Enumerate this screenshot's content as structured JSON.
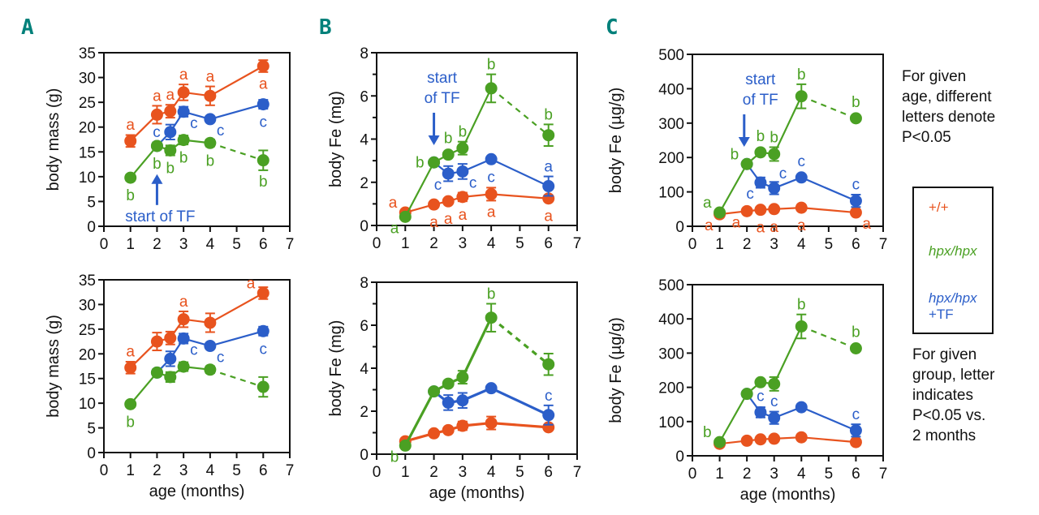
{
  "colors": {
    "wt": "#e8531e",
    "hpx": "#4aa023",
    "tf": "#2b5ec9",
    "panel_label": "#00807a"
  },
  "notes": {
    "top": [
      "For given",
      "age, different",
      "letters denote",
      "P<0.05"
    ],
    "bottom": [
      "For given",
      "group, letter",
      "indicates",
      "P<0.05 vs.",
      "2 months"
    ]
  },
  "legend": {
    "wt": "+/+",
    "hpx": "hpx/hpx",
    "tf_line1": "hpx/hpx",
    "tf_line2": "+TF"
  },
  "chart_data": [
    {
      "id": "A-top",
      "panel": "A",
      "type": "line",
      "ylabel": "body mass (g)",
      "xlabel": "",
      "ylim": [
        0,
        35
      ],
      "yticks": [
        0,
        5,
        10,
        15,
        20,
        25,
        30,
        35
      ],
      "xlim": [
        0,
        7
      ],
      "xticks": [
        0,
        1,
        2,
        3,
        4,
        5,
        6,
        7
      ],
      "annotation": {
        "text": [
          "start of TF"
        ],
        "arrow": "up",
        "x": 2
      },
      "series": [
        {
          "name": "+/+",
          "color_key": "wt",
          "x": [
            1,
            2,
            2.5,
            3,
            4,
            6
          ],
          "y": [
            17.2,
            22.5,
            23.2,
            27,
            26.3,
            32.3
          ],
          "err": [
            1.2,
            1.8,
            1.3,
            1.6,
            1.9,
            1.2
          ],
          "dashed_last": false,
          "letters": [
            {
              "x": 1,
              "t": "a",
              "pos": "above"
            },
            {
              "x": 2,
              "t": "a",
              "pos": "above"
            },
            {
              "x": 2.5,
              "t": "a",
              "pos": "above"
            },
            {
              "x": 3,
              "t": "a",
              "pos": "above"
            },
            {
              "x": 4,
              "t": "a",
              "pos": "above"
            },
            {
              "x": 6,
              "t": "a",
              "pos": "below"
            }
          ]
        },
        {
          "name": "hpx/hpx +TF",
          "color_key": "tf",
          "x": [
            2,
            2.5,
            3,
            4,
            6
          ],
          "y": [
            16.2,
            19,
            23.1,
            21.6,
            24.6
          ],
          "err": [
            0,
            1.5,
            1,
            0.6,
            0.9
          ],
          "dashed_last": false,
          "letters": [
            {
              "x": 2.5,
              "t": "c",
              "pos": "left"
            },
            {
              "x": 3,
              "t": "c",
              "pos": "belowright"
            },
            {
              "x": 4,
              "t": "c",
              "pos": "belowright"
            },
            {
              "x": 6,
              "t": "c",
              "pos": "below"
            }
          ]
        },
        {
          "name": "hpx/hpx",
          "color_key": "hpx",
          "x": [
            1,
            2,
            2.5,
            3,
            4,
            6
          ],
          "y": [
            9.8,
            16.2,
            15.3,
            17.4,
            16.8,
            13.3
          ],
          "err": [
            0.6,
            0.7,
            1,
            0.9,
            0.7,
            2
          ],
          "dashed_last": true,
          "letters": [
            {
              "x": 1,
              "t": "b",
              "pos": "below"
            },
            {
              "x": 2,
              "t": "b",
              "pos": "below"
            },
            {
              "x": 2.5,
              "t": "b",
              "pos": "below"
            },
            {
              "x": 3,
              "t": "b",
              "pos": "below"
            },
            {
              "x": 4,
              "t": "b",
              "pos": "below"
            },
            {
              "x": 6,
              "t": "b",
              "pos": "below"
            }
          ]
        }
      ]
    },
    {
      "id": "A-bottom",
      "panel": "A",
      "type": "line",
      "ylabel": "body mass (g)",
      "xlabel": "age (months)",
      "ylim": [
        0,
        35
      ],
      "yticks": [
        0,
        5,
        10,
        15,
        20,
        25,
        30,
        35
      ],
      "xlim": [
        0,
        7
      ],
      "xticks": [
        0,
        1,
        2,
        3,
        4,
        5,
        6,
        7
      ],
      "series": [
        {
          "name": "+/+",
          "color_key": "wt",
          "x": [
            1,
            2,
            2.5,
            3,
            4,
            6
          ],
          "y": [
            17.2,
            22.5,
            23.2,
            27,
            26.3,
            32.3
          ],
          "err": [
            1.2,
            1.8,
            1.3,
            1.6,
            1.9,
            1.2
          ],
          "dashed_last": false,
          "letters": [
            {
              "x": 1,
              "t": "a",
              "pos": "above"
            },
            {
              "x": 3,
              "t": "a",
              "pos": "above"
            },
            {
              "x": 6,
              "t": "a",
              "pos": "aboveleft"
            }
          ]
        },
        {
          "name": "hpx/hpx +TF",
          "color_key": "tf",
          "x": [
            2,
            2.5,
            3,
            4,
            6
          ],
          "y": [
            16.2,
            19,
            23.1,
            21.6,
            24.6
          ],
          "err": [
            0,
            1.5,
            1,
            0.6,
            0.9
          ],
          "dashed_last": false,
          "letters": [
            {
              "x": 3,
              "t": "c",
              "pos": "belowright"
            },
            {
              "x": 4,
              "t": "c",
              "pos": "belowright"
            },
            {
              "x": 6,
              "t": "c",
              "pos": "below"
            }
          ]
        },
        {
          "name": "hpx/hpx",
          "color_key": "hpx",
          "x": [
            1,
            2,
            2.5,
            3,
            4,
            6
          ],
          "y": [
            9.8,
            16.2,
            15.3,
            17.4,
            16.8,
            13.3
          ],
          "err": [
            0.6,
            0.7,
            1,
            0.9,
            0.7,
            2
          ],
          "dashed_last": true,
          "letters": [
            {
              "x": 1,
              "t": "b",
              "pos": "below"
            }
          ]
        }
      ]
    },
    {
      "id": "B-top",
      "panel": "B",
      "type": "line",
      "ylabel": "body Fe (mg)",
      "xlabel": "",
      "ylim": [
        0,
        8
      ],
      "yticks": [
        0,
        2,
        4,
        6,
        8
      ],
      "yminor": [
        1,
        3,
        5,
        7
      ],
      "xlim": [
        0,
        7
      ],
      "xticks": [
        0,
        1,
        2,
        3,
        4,
        5,
        6,
        7
      ],
      "annotation": {
        "text": [
          "start",
          "of TF"
        ],
        "arrow": "down",
        "x": 2
      },
      "series": [
        {
          "name": "+/+",
          "color_key": "wt",
          "x": [
            1,
            2,
            2.5,
            3,
            4,
            6
          ],
          "y": [
            0.6,
            0.97,
            1.12,
            1.32,
            1.45,
            1.25
          ],
          "err": [
            0.1,
            0.1,
            0.12,
            0.2,
            0.3,
            0.1
          ],
          "dashed_last": false,
          "letters": [
            {
              "x": 1,
              "t": "a",
              "pos": "aboveleft"
            },
            {
              "x": 2,
              "t": "a",
              "pos": "below"
            },
            {
              "x": 2.5,
              "t": "a",
              "pos": "below"
            },
            {
              "x": 3,
              "t": "a",
              "pos": "below"
            },
            {
              "x": 4,
              "t": "a",
              "pos": "below"
            },
            {
              "x": 6,
              "t": "a",
              "pos": "below"
            }
          ]
        },
        {
          "name": "hpx/hpx +TF",
          "color_key": "tf",
          "x": [
            2,
            2.5,
            3,
            4,
            6
          ],
          "y": [
            2.92,
            2.4,
            2.5,
            3.07,
            1.82
          ],
          "err": [
            0,
            0.35,
            0.35,
            0.1,
            0.45
          ],
          "dashed_last": false,
          "letters": [
            {
              "x": 2.5,
              "t": "c",
              "pos": "belowleft"
            },
            {
              "x": 3,
              "t": "c",
              "pos": "belowright"
            },
            {
              "x": 4,
              "t": "c",
              "pos": "below"
            },
            {
              "x": 6,
              "t": "a",
              "pos": "above"
            }
          ]
        },
        {
          "name": "hpx/hpx",
          "color_key": "hpx",
          "x": [
            1,
            2,
            2.5,
            3,
            4,
            6
          ],
          "y": [
            0.4,
            2.92,
            3.28,
            3.58,
            6.35,
            4.18
          ],
          "err": [
            0.1,
            0.1,
            0.1,
            0.3,
            0.65,
            0.5
          ],
          "dashed_last": true,
          "letters": [
            {
              "x": 1,
              "t": "a",
              "pos": "belowleft"
            },
            {
              "x": 2,
              "t": "b",
              "pos": "left"
            },
            {
              "x": 2.5,
              "t": "b",
              "pos": "above"
            },
            {
              "x": 3,
              "t": "b",
              "pos": "above"
            },
            {
              "x": 4,
              "t": "b",
              "pos": "above"
            },
            {
              "x": 6,
              "t": "b",
              "pos": "above"
            }
          ]
        }
      ]
    },
    {
      "id": "B-bottom",
      "panel": "B",
      "type": "line",
      "ylabel": "body Fe (mg)",
      "xlabel": "age (months)",
      "ylim": [
        0,
        8
      ],
      "yticks": [
        0,
        2,
        4,
        6,
        8
      ],
      "yminor": [
        1,
        3,
        5,
        7
      ],
      "xlim": [
        0,
        7
      ],
      "xticks": [
        0,
        1,
        2,
        3,
        4,
        5,
        6,
        7
      ],
      "series": [
        {
          "name": "+/+",
          "color_key": "wt",
          "x": [
            1,
            2,
            2.5,
            3,
            4,
            6
          ],
          "y": [
            0.6,
            0.97,
            1.12,
            1.32,
            1.45,
            1.25
          ],
          "err": [
            0.1,
            0.1,
            0.12,
            0.2,
            0.3,
            0.1
          ],
          "dashed_last": false,
          "letters": []
        },
        {
          "name": "hpx/hpx +TF",
          "color_key": "tf",
          "x": [
            2,
            2.5,
            3,
            4,
            6
          ],
          "y": [
            2.92,
            2.4,
            2.5,
            3.07,
            1.82
          ],
          "err": [
            0,
            0.35,
            0.35,
            0.1,
            0.45
          ],
          "dashed_last": false,
          "letters": [
            {
              "x": 6,
              "t": "c",
              "pos": "above"
            }
          ]
        },
        {
          "name": "hpx/hpx",
          "color_key": "hpx",
          "x": [
            1,
            2,
            2.5,
            3,
            4,
            6
          ],
          "y": [
            0.4,
            2.92,
            3.28,
            3.58,
            6.35,
            4.18
          ],
          "err": [
            0.1,
            0.1,
            0.1,
            0.3,
            0.65,
            0.5
          ],
          "dashed_last": true,
          "letters": [
            {
              "x": 1,
              "t": "b",
              "pos": "belowleft"
            },
            {
              "x": 4,
              "t": "b",
              "pos": "above"
            }
          ]
        }
      ]
    },
    {
      "id": "C-top",
      "panel": "C",
      "type": "line",
      "ylabel": "body Fe (µg/g)",
      "xlabel": "",
      "ylim": [
        0,
        500
      ],
      "yticks": [
        0,
        100,
        200,
        300,
        400,
        500
      ],
      "xlim": [
        0,
        7
      ],
      "xticks": [
        0,
        1,
        2,
        3,
        4,
        5,
        6,
        7
      ],
      "annotation": {
        "text": [
          "start",
          "of TF"
        ],
        "arrow": "down",
        "x": 1.9
      },
      "series": [
        {
          "name": "+/+",
          "color_key": "wt",
          "x": [
            1,
            2,
            2.5,
            3,
            4,
            6
          ],
          "y": [
            35,
            44,
            48,
            50,
            54,
            40
          ],
          "err": [
            3,
            4,
            4,
            4,
            5,
            4
          ],
          "dashed_last": false,
          "letters": [
            {
              "x": 1,
              "t": "a",
              "pos": "belowleft"
            },
            {
              "x": 2,
              "t": "a",
              "pos": "belowleft"
            },
            {
              "x": 2.5,
              "t": "a",
              "pos": "below"
            },
            {
              "x": 3,
              "t": "a",
              "pos": "below"
            },
            {
              "x": 4,
              "t": "a",
              "pos": "below"
            },
            {
              "x": 6,
              "t": "a",
              "pos": "belowright"
            }
          ]
        },
        {
          "name": "hpx/hpx +TF",
          "color_key": "tf",
          "x": [
            2,
            2.5,
            3,
            4,
            6
          ],
          "y": [
            181,
            127,
            111,
            142,
            74
          ],
          "err": [
            0,
            15,
            18,
            8,
            18
          ],
          "dashed_last": false,
          "letters": [
            {
              "x": 2.5,
              "t": "c",
              "pos": "belowleft"
            },
            {
              "x": 3,
              "t": "c",
              "pos": "aboveright"
            },
            {
              "x": 4,
              "t": "c",
              "pos": "above"
            },
            {
              "x": 6,
              "t": "c",
              "pos": "above"
            }
          ]
        },
        {
          "name": "hpx/hpx",
          "color_key": "hpx",
          "x": [
            1,
            2,
            2.5,
            3,
            4,
            6
          ],
          "y": [
            40,
            181,
            215,
            210,
            378,
            314
          ],
          "err": [
            5,
            5,
            6,
            20,
            35,
            5
          ],
          "dashed_last": true,
          "letters": [
            {
              "x": 1,
              "t": "a",
              "pos": "aboveleft"
            },
            {
              "x": 2,
              "t": "b",
              "pos": "aboveleft"
            },
            {
              "x": 2.5,
              "t": "b",
              "pos": "above"
            },
            {
              "x": 3,
              "t": "b",
              "pos": "above"
            },
            {
              "x": 4,
              "t": "b",
              "pos": "above"
            },
            {
              "x": 6,
              "t": "b",
              "pos": "above"
            }
          ]
        }
      ]
    },
    {
      "id": "C-bottom",
      "panel": "C",
      "type": "line",
      "ylabel": "body Fe (µg/g)",
      "xlabel": "age (months)",
      "ylim": [
        0,
        500
      ],
      "yticks": [
        0,
        100,
        200,
        300,
        400,
        500
      ],
      "xlim": [
        0,
        7
      ],
      "xticks": [
        0,
        1,
        2,
        3,
        4,
        5,
        6,
        7
      ],
      "series": [
        {
          "name": "+/+",
          "color_key": "wt",
          "x": [
            1,
            2,
            2.5,
            3,
            4,
            6
          ],
          "y": [
            35,
            44,
            48,
            50,
            54,
            40
          ],
          "err": [
            3,
            4,
            4,
            4,
            5,
            4
          ],
          "dashed_last": false,
          "letters": []
        },
        {
          "name": "hpx/hpx +TF",
          "color_key": "tf",
          "x": [
            2,
            2.5,
            3,
            4,
            6
          ],
          "y": [
            181,
            127,
            111,
            142,
            74
          ],
          "err": [
            0,
            15,
            18,
            8,
            18
          ],
          "dashed_last": false,
          "letters": [
            {
              "x": 2.5,
              "t": "c",
              "pos": "above"
            },
            {
              "x": 3,
              "t": "c",
              "pos": "above"
            },
            {
              "x": 6,
              "t": "c",
              "pos": "above"
            }
          ]
        },
        {
          "name": "hpx/hpx",
          "color_key": "hpx",
          "x": [
            1,
            2,
            2.5,
            3,
            4,
            6
          ],
          "y": [
            40,
            181,
            215,
            210,
            378,
            314
          ],
          "err": [
            5,
            5,
            6,
            20,
            35,
            5
          ],
          "dashed_last": true,
          "letters": [
            {
              "x": 1,
              "t": "b",
              "pos": "aboveleft"
            },
            {
              "x": 4,
              "t": "b",
              "pos": "above"
            },
            {
              "x": 6,
              "t": "b",
              "pos": "above"
            }
          ]
        }
      ]
    }
  ],
  "panel_labels": [
    "A",
    "B",
    "C"
  ]
}
